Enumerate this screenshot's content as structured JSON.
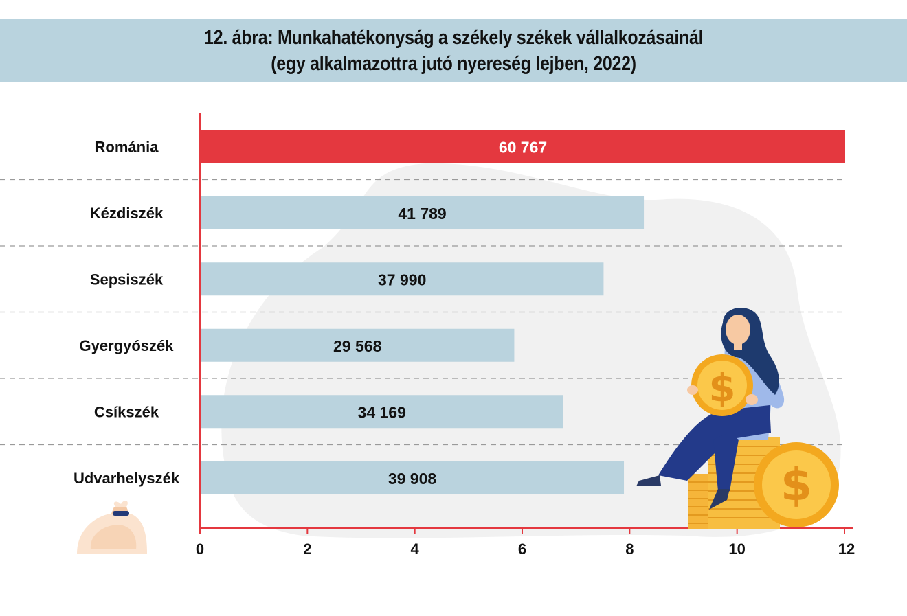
{
  "title": {
    "line1": "12. ábra: Munkahatékonyság a székely székek vállalkozásainál",
    "line2": "(egy alkalmazottra jutó nyereség lejben, 2022)"
  },
  "colors": {
    "highlight_bar": "#e4383f",
    "bar": "#bad3de",
    "axis": "#e4383f",
    "title_band": "#b9d3de"
  },
  "chart_data": {
    "type": "bar",
    "orientation": "horizontal",
    "categories": [
      "Románia",
      "Kézdiszék",
      "Sepsiszék",
      "Gyergyószék",
      "Csíkszék",
      "Udvarhelyszék"
    ],
    "values": [
      60767,
      41789,
      37990,
      29568,
      34169,
      39908
    ],
    "value_labels": [
      "60 767",
      "41 789",
      "37 990",
      "29 568",
      "34 169",
      "39 908"
    ],
    "highlight_index": 0,
    "x_ticks": [
      "0",
      "2",
      "4",
      "6",
      "8",
      "10",
      "12"
    ],
    "xlim": [
      0,
      12
    ],
    "bar_scale_max": 60767,
    "grid": "dashed separators between rows",
    "legend": "none"
  }
}
